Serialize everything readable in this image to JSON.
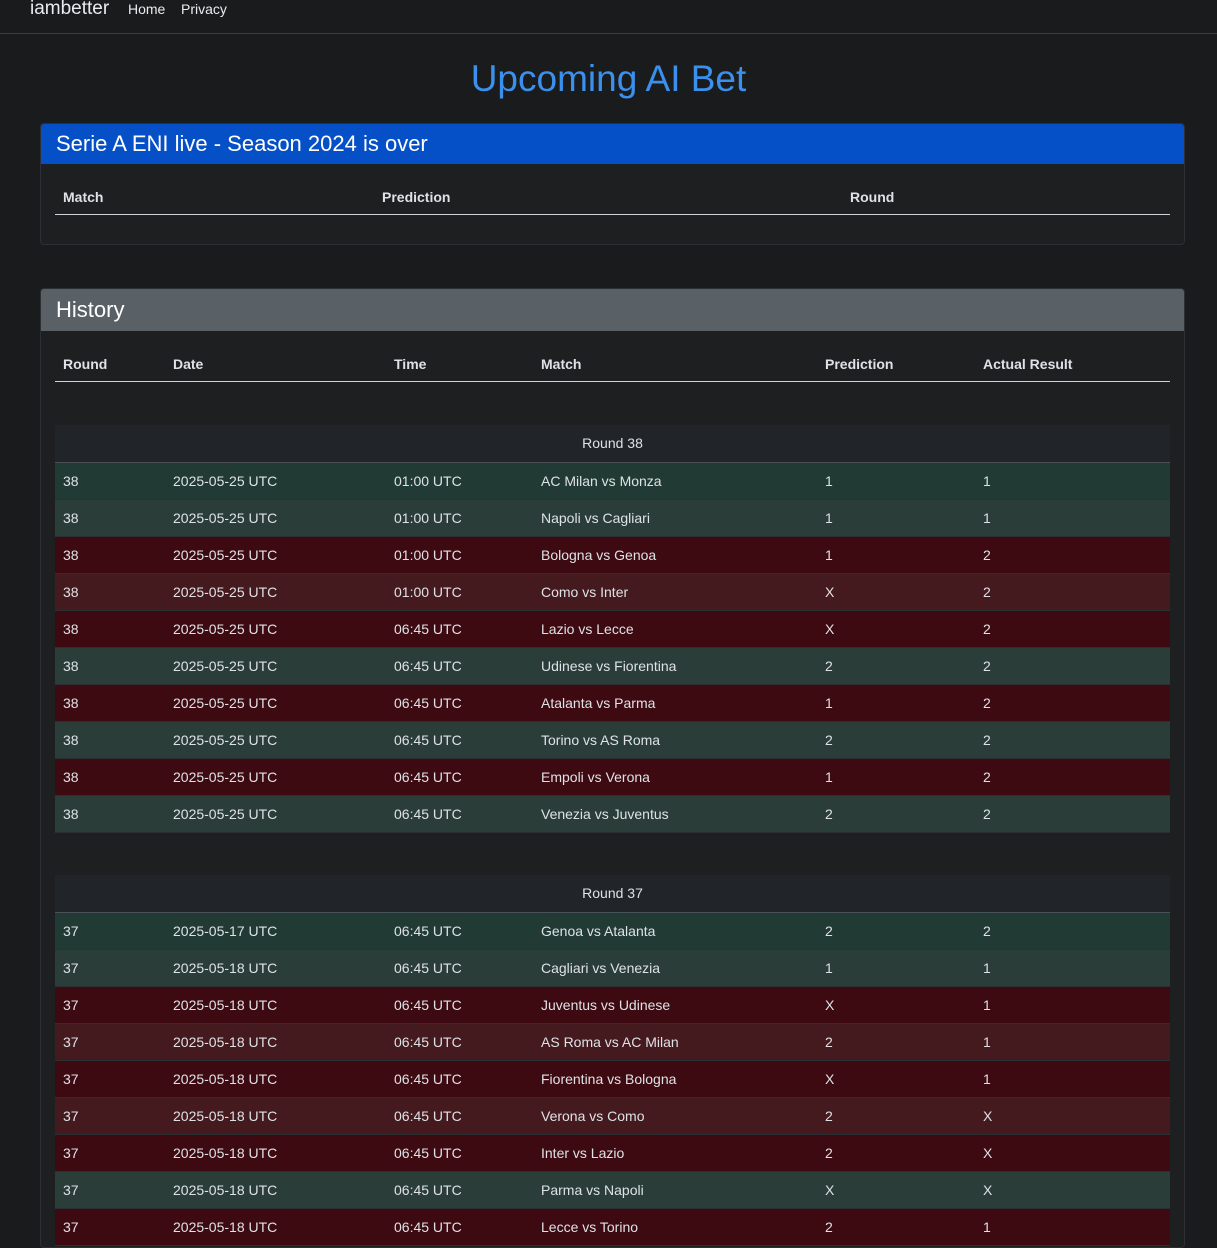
{
  "nav": {
    "brand": "iambetter",
    "home": "Home",
    "privacy": "Privacy"
  },
  "title": "Upcoming AI Bet",
  "live": {
    "header": "Serie A ENI live - Season 2024 is over",
    "columns": {
      "match": "Match",
      "prediction": "Prediction",
      "round": "Round"
    }
  },
  "history": {
    "header": "History",
    "columns": {
      "round": "Round",
      "date": "Date",
      "time": "Time",
      "match": "Match",
      "prediction": "Prediction",
      "actual": "Actual Result"
    },
    "groups": [
      {
        "title": "Round 38",
        "rows": [
          {
            "round": "38",
            "date": "2025-05-25 UTC",
            "time": "01:00 UTC",
            "match": "AC Milan vs Monza",
            "prediction": "1",
            "actual": "1",
            "outcome": "win"
          },
          {
            "round": "38",
            "date": "2025-05-25 UTC",
            "time": "01:00 UTC",
            "match": "Napoli vs Cagliari",
            "prediction": "1",
            "actual": "1",
            "outcome": "win"
          },
          {
            "round": "38",
            "date": "2025-05-25 UTC",
            "time": "01:00 UTC",
            "match": "Bologna vs Genoa",
            "prediction": "1",
            "actual": "2",
            "outcome": "lose"
          },
          {
            "round": "38",
            "date": "2025-05-25 UTC",
            "time": "01:00 UTC",
            "match": "Como vs Inter",
            "prediction": "X",
            "actual": "2",
            "outcome": "lose"
          },
          {
            "round": "38",
            "date": "2025-05-25 UTC",
            "time": "06:45 UTC",
            "match": "Lazio vs Lecce",
            "prediction": "X",
            "actual": "2",
            "outcome": "lose"
          },
          {
            "round": "38",
            "date": "2025-05-25 UTC",
            "time": "06:45 UTC",
            "match": "Udinese vs Fiorentina",
            "prediction": "2",
            "actual": "2",
            "outcome": "win"
          },
          {
            "round": "38",
            "date": "2025-05-25 UTC",
            "time": "06:45 UTC",
            "match": "Atalanta vs Parma",
            "prediction": "1",
            "actual": "2",
            "outcome": "lose"
          },
          {
            "round": "38",
            "date": "2025-05-25 UTC",
            "time": "06:45 UTC",
            "match": "Torino vs AS Roma",
            "prediction": "2",
            "actual": "2",
            "outcome": "win"
          },
          {
            "round": "38",
            "date": "2025-05-25 UTC",
            "time": "06:45 UTC",
            "match": "Empoli vs Verona",
            "prediction": "1",
            "actual": "2",
            "outcome": "lose"
          },
          {
            "round": "38",
            "date": "2025-05-25 UTC",
            "time": "06:45 UTC",
            "match": "Venezia vs Juventus",
            "prediction": "2",
            "actual": "2",
            "outcome": "win"
          }
        ]
      },
      {
        "title": "Round 37",
        "rows": [
          {
            "round": "37",
            "date": "2025-05-17 UTC",
            "time": "06:45 UTC",
            "match": "Genoa vs Atalanta",
            "prediction": "2",
            "actual": "2",
            "outcome": "win"
          },
          {
            "round": "37",
            "date": "2025-05-18 UTC",
            "time": "06:45 UTC",
            "match": "Cagliari vs Venezia",
            "prediction": "1",
            "actual": "1",
            "outcome": "win"
          },
          {
            "round": "37",
            "date": "2025-05-18 UTC",
            "time": "06:45 UTC",
            "match": "Juventus vs Udinese",
            "prediction": "X",
            "actual": "1",
            "outcome": "lose"
          },
          {
            "round": "37",
            "date": "2025-05-18 UTC",
            "time": "06:45 UTC",
            "match": "AS Roma vs AC Milan",
            "prediction": "2",
            "actual": "1",
            "outcome": "lose"
          },
          {
            "round": "37",
            "date": "2025-05-18 UTC",
            "time": "06:45 UTC",
            "match": "Fiorentina vs Bologna",
            "prediction": "X",
            "actual": "1",
            "outcome": "lose"
          },
          {
            "round": "37",
            "date": "2025-05-18 UTC",
            "time": "06:45 UTC",
            "match": "Verona vs Como",
            "prediction": "2",
            "actual": "X",
            "outcome": "lose"
          },
          {
            "round": "37",
            "date": "2025-05-18 UTC",
            "time": "06:45 UTC",
            "match": "Inter vs Lazio",
            "prediction": "2",
            "actual": "X",
            "outcome": "lose"
          },
          {
            "round": "37",
            "date": "2025-05-18 UTC",
            "time": "06:45 UTC",
            "match": "Parma vs Napoli",
            "prediction": "X",
            "actual": "X",
            "outcome": "win"
          },
          {
            "round": "37",
            "date": "2025-05-18 UTC",
            "time": "06:45 UTC",
            "match": "Lecce vs Torino",
            "prediction": "2",
            "actual": "1",
            "outcome": "lose"
          }
        ]
      }
    ]
  },
  "colors": {
    "accent": "#3a90ec",
    "live_header": "#0650c7",
    "history_header": "#5a6166",
    "win": "#213a33",
    "lose": "#3d0a11"
  }
}
